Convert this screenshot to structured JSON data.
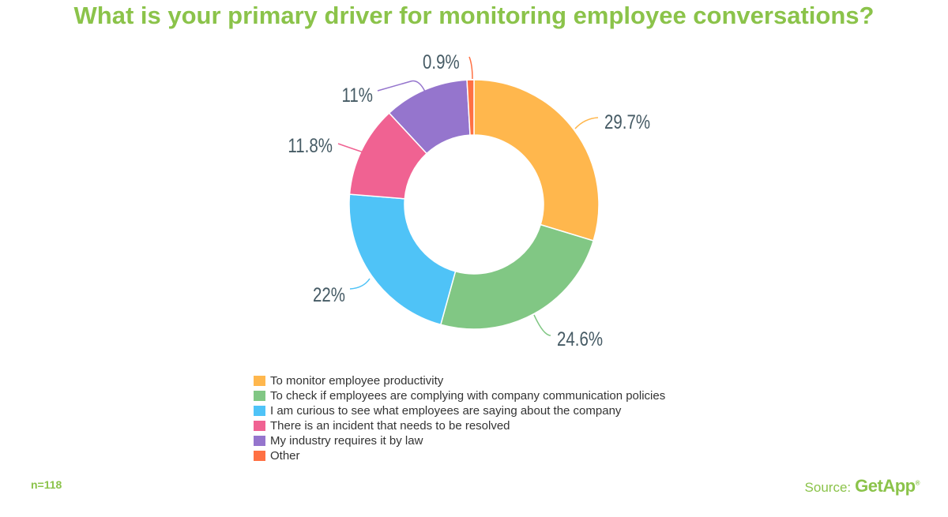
{
  "chart_data": {
    "type": "pie",
    "variant": "donut",
    "title": "What is your primary driver for monitoring employee conversations?",
    "categories": [
      "To monitor employee productivity",
      "To check if employees are complying with company communication policies",
      "I am curious to see what employees are saying about the company",
      "There is an incident that needs to be resolved",
      "My industry requires it by law",
      "Other"
    ],
    "values": [
      29.7,
      24.6,
      22,
      11.8,
      11,
      0.9
    ],
    "labels": [
      "29.7%",
      "24.6%",
      "22%",
      "11.8%",
      "11%",
      "0.9%"
    ],
    "colors": [
      "#ffb74d",
      "#81c784",
      "#4fc3f7",
      "#f06292",
      "#9575cd",
      "#ff7043"
    ],
    "legend_position": "bottom"
  },
  "footer": {
    "sample": "n=118",
    "source_label": "Source:",
    "brand": "GetApp",
    "brand_mark": "®"
  },
  "theme": {
    "accent": "#8bc34a",
    "label_color": "#455a64"
  }
}
